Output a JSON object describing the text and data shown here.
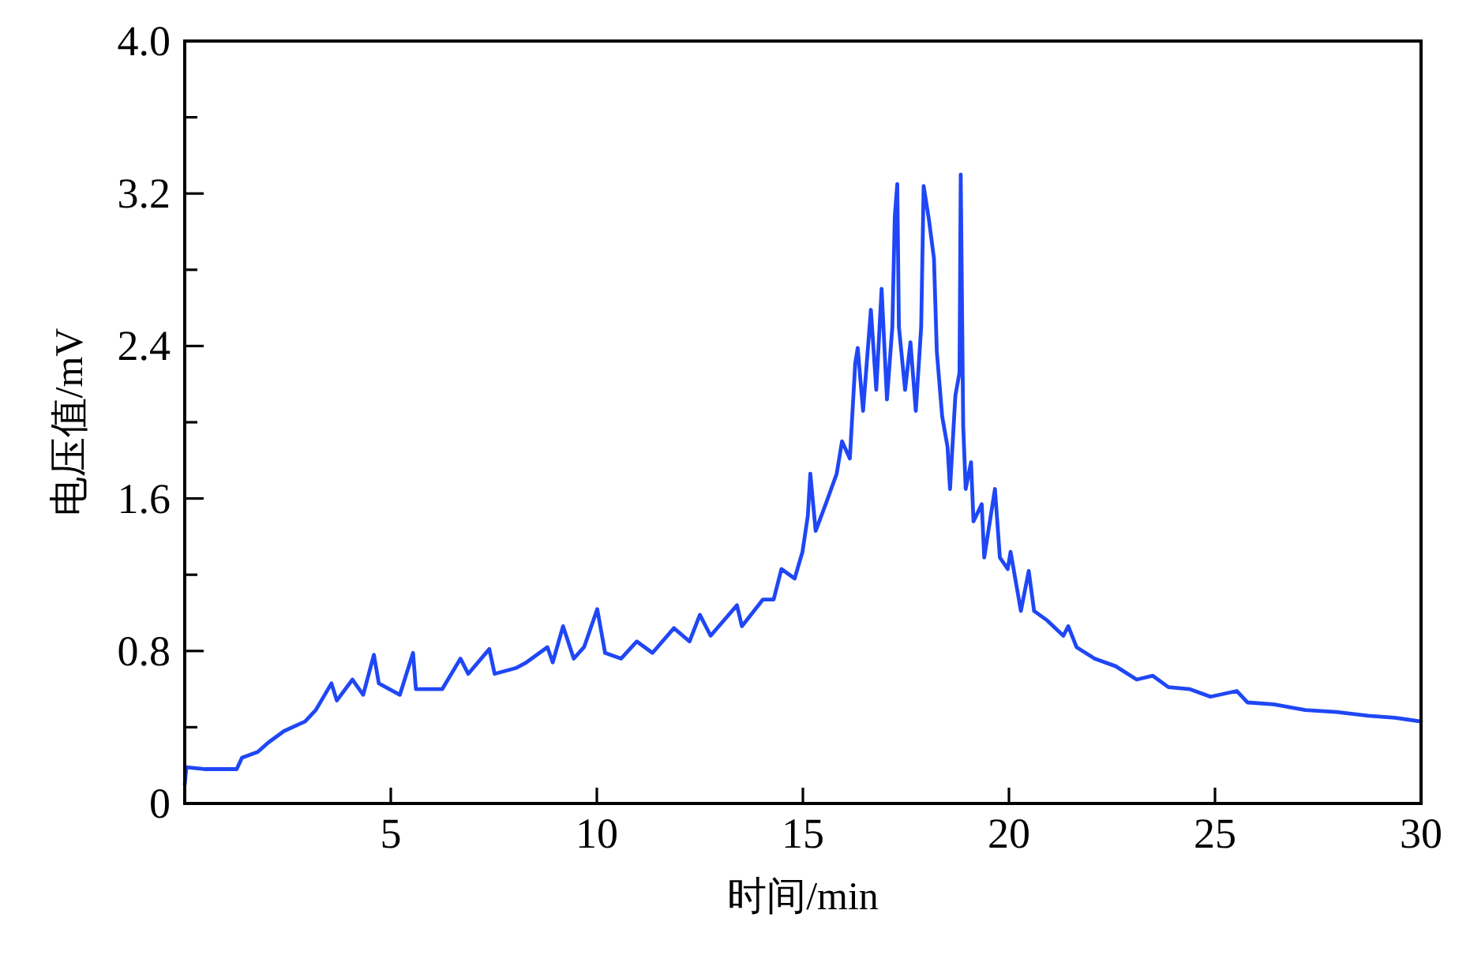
{
  "chart_data": {
    "type": "line",
    "xlabel": "时间/min",
    "ylabel": "电压值/mV",
    "xlim": [
      0,
      30
    ],
    "xticks": [
      5,
      10,
      15,
      20,
      25,
      30
    ],
    "ylim": [
      0,
      4
    ],
    "yticks": [
      0,
      {
        "value": 0.4,
        "label": null
      },
      0.8,
      {
        "value": 1.2,
        "label": null
      },
      1.6,
      {
        "value": 2.0,
        "label": null
      },
      2.4,
      {
        "value": 2.8,
        "label": null
      },
      3.2,
      {
        "value": 3.6,
        "label": null
      },
      {
        "value": 4,
        "label": "4.0"
      }
    ],
    "x": [
      0,
      0.04,
      0.5,
      1.26,
      1.39,
      1.77,
      2.03,
      2.41,
      2.92,
      3.18,
      3.56,
      3.69,
      4.07,
      4.33,
      4.59,
      4.71,
      5.22,
      5.54,
      5.61,
      6.25,
      6.69,
      6.88,
      7.39,
      7.52,
      8.03,
      8.29,
      8.8,
      8.93,
      9.18,
      9.44,
      9.69,
      10.01,
      10.2,
      10.59,
      10.97,
      11.35,
      11.87,
      12.25,
      12.5,
      12.76,
      13.4,
      13.52,
      14.03,
      14.29,
      14.48,
      14.8,
      14.99,
      15.12,
      15.18,
      15.31,
      15.57,
      15.82,
      15.95,
      16.14,
      16.27,
      16.33,
      16.46,
      16.65,
      16.78,
      16.91,
      17.04,
      17.17,
      17.23,
      17.29,
      17.33,
      17.48,
      17.61,
      17.74,
      17.87,
      17.93,
      18.06,
      18.18,
      18.25,
      18.38,
      18.51,
      18.57,
      18.7,
      18.8,
      18.83,
      18.89,
      18.95,
      19.08,
      19.14,
      19.34,
      19.4,
      19.66,
      19.78,
      19.97,
      20.04,
      20.29,
      20.48,
      20.61,
      20.93,
      21.32,
      21.44,
      21.64,
      22.08,
      22.59,
      23.1,
      23.49,
      23.87,
      24.38,
      24.89,
      25.53,
      25.79,
      26.42,
      27.19,
      27.95,
      28.72,
      29.36,
      30
    ],
    "values": [
      0.1,
      0.19,
      0.18,
      0.18,
      0.24,
      0.27,
      0.32,
      0.38,
      0.43,
      0.49,
      0.63,
      0.54,
      0.65,
      0.57,
      0.78,
      0.63,
      0.57,
      0.79,
      0.6,
      0.6,
      0.76,
      0.68,
      0.81,
      0.68,
      0.71,
      0.74,
      0.82,
      0.74,
      0.93,
      0.76,
      0.82,
      1.02,
      0.79,
      0.76,
      0.85,
      0.79,
      0.92,
      0.85,
      0.99,
      0.88,
      1.04,
      0.93,
      1.07,
      1.07,
      1.23,
      1.18,
      1.32,
      1.51,
      1.73,
      1.43,
      1.58,
      1.73,
      1.9,
      1.81,
      2.31,
      2.39,
      2.06,
      2.59,
      2.17,
      2.7,
      2.12,
      2.5,
      3.08,
      3.25,
      2.5,
      2.17,
      2.42,
      2.06,
      2.5,
      3.24,
      3.06,
      2.86,
      2.37,
      2.03,
      1.87,
      1.65,
      2.14,
      2.26,
      3.3,
      1.98,
      1.65,
      1.79,
      1.48,
      1.57,
      1.29,
      1.65,
      1.29,
      1.23,
      1.32,
      1.01,
      1.22,
      1.01,
      0.96,
      0.88,
      0.93,
      0.82,
      0.76,
      0.72,
      0.65,
      0.67,
      0.61,
      0.6,
      0.56,
      0.59,
      0.53,
      0.52,
      0.49,
      0.48,
      0.46,
      0.45,
      0.43
    ],
    "color": "#1f47f5"
  }
}
